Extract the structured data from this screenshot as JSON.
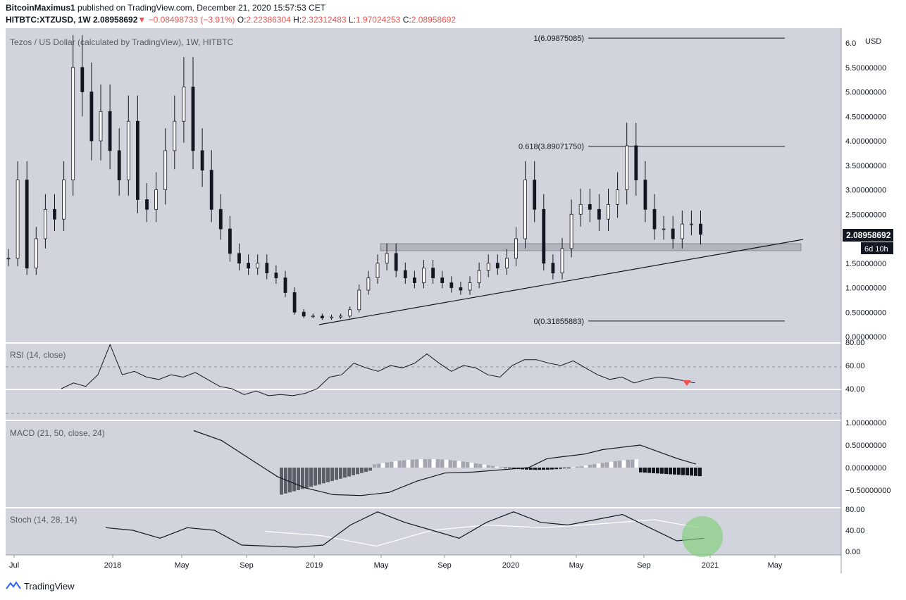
{
  "header": {
    "author": "BitcoinMaximus1",
    "published": "published on TradingView.com, December 21, 2020 15:57:53 CET",
    "symbol": "HITBTC:XTZUSD, 1W",
    "price": "2.08958692",
    "change": "−0.08498733 (−3.91%)",
    "o_label": "O:",
    "o": "2.22386304",
    "h_label": "H:",
    "h": "2.32312483",
    "l_label": "L:",
    "l": "1.97024253",
    "c_label": "C:",
    "c": "2.08958692"
  },
  "footer": {
    "brand": "TradingView"
  },
  "colors": {
    "panel": "#d1d4dc",
    "up": "#ffffff",
    "down": "#131722",
    "red": "#ef5350",
    "green": "#7fd07a"
  },
  "main_panel": {
    "title": "Tezos / US Dollar (calculated by TradingView), 1W, HITBTC",
    "currency": "USD",
    "last_price": "2.08958692",
    "countdown": "6d 10h",
    "fib_levels": [
      {
        "label": "1(6.09875085)",
        "value": 6.09875085
      },
      {
        "label": "0.618(3.89071750)",
        "value": 3.8907175
      },
      {
        "label": "0(0.31855883)",
        "value": 0.31855883
      }
    ]
  },
  "rsi_panel": {
    "title": "RSI (14, close)",
    "ticks": [
      "80.00",
      "60.00",
      "40.00"
    ]
  },
  "macd_panel": {
    "title": "MACD (21, 50, close, 24)",
    "ticks": [
      "1.00000000",
      "0.50000000",
      "0.00000000",
      "−0.50000000"
    ]
  },
  "stoch_panel": {
    "title": "Stoch (14, 28, 14)",
    "ticks": [
      "80.00",
      "40.00",
      "0.00"
    ]
  },
  "chart_data": {
    "type": "candlestick",
    "title": "Tezos / US Dollar (calculated by TradingView), 1W, HITBTC",
    "y_unit": "USD",
    "y_ticks": [
      "6.0",
      "5.50000000",
      "5.00000000",
      "4.50000000",
      "4.00000000",
      "3.50000000",
      "3.00000000",
      "2.50000000",
      "2.00000000",
      "1.50000000",
      "1.00000000",
      "0.50000000",
      "0.00000000"
    ],
    "x_ticks": [
      "Jul",
      "2018",
      "May",
      "Sep",
      "2019",
      "May",
      "Sep",
      "2020",
      "May",
      "Sep",
      "2021",
      "May"
    ],
    "price_path": [
      [
        0,
        1.6
      ],
      [
        2,
        3.2
      ],
      [
        4,
        1.4
      ],
      [
        6,
        2.0
      ],
      [
        8,
        2.6
      ],
      [
        10,
        2.4
      ],
      [
        12,
        3.2
      ],
      [
        14,
        5.5
      ],
      [
        16,
        5.0
      ],
      [
        18,
        4.0
      ],
      [
        20,
        4.6
      ],
      [
        22,
        3.8
      ],
      [
        24,
        3.2
      ],
      [
        26,
        4.4
      ],
      [
        28,
        2.8
      ],
      [
        30,
        2.6
      ],
      [
        32,
        3.0
      ],
      [
        34,
        3.8
      ],
      [
        36,
        4.4
      ],
      [
        38,
        5.1
      ],
      [
        40,
        3.8
      ],
      [
        42,
        3.4
      ],
      [
        44,
        2.6
      ],
      [
        46,
        2.2
      ],
      [
        48,
        1.7
      ],
      [
        50,
        1.5
      ],
      [
        52,
        1.4
      ],
      [
        54,
        1.5
      ],
      [
        56,
        1.3
      ],
      [
        58,
        1.2
      ],
      [
        60,
        0.9
      ],
      [
        62,
        0.5
      ],
      [
        64,
        0.42
      ],
      [
        66,
        0.42
      ],
      [
        68,
        0.38
      ],
      [
        70,
        0.4
      ],
      [
        72,
        0.42
      ],
      [
        74,
        0.55
      ],
      [
        76,
        0.95
      ],
      [
        78,
        1.2
      ],
      [
        80,
        1.5
      ],
      [
        82,
        1.7
      ],
      [
        84,
        1.35
      ],
      [
        86,
        1.2
      ],
      [
        88,
        1.1
      ],
      [
        90,
        1.4
      ],
      [
        92,
        1.2
      ],
      [
        94,
        1.1
      ],
      [
        96,
        1.0
      ],
      [
        98,
        0.95
      ],
      [
        100,
        1.1
      ],
      [
        102,
        1.35
      ],
      [
        104,
        1.5
      ],
      [
        106,
        1.4
      ],
      [
        108,
        1.6
      ],
      [
        110,
        2.0
      ],
      [
        112,
        3.2
      ],
      [
        114,
        2.6
      ],
      [
        116,
        1.5
      ],
      [
        118,
        1.3
      ],
      [
        120,
        1.8
      ],
      [
        122,
        2.5
      ],
      [
        124,
        2.7
      ],
      [
        126,
        2.6
      ],
      [
        128,
        2.4
      ],
      [
        130,
        2.7
      ],
      [
        132,
        3.0
      ],
      [
        134,
        3.9
      ],
      [
        136,
        3.2
      ],
      [
        138,
        2.6
      ],
      [
        140,
        2.2
      ],
      [
        142,
        2.2
      ],
      [
        144,
        2.0
      ],
      [
        146,
        2.3
      ],
      [
        148,
        2.3
      ],
      [
        150,
        2.09
      ]
    ],
    "rsi_path": [
      [
        0,
        40
      ],
      [
        2,
        45
      ],
      [
        4,
        42
      ],
      [
        6,
        52
      ],
      [
        8,
        78
      ],
      [
        10,
        52
      ],
      [
        12,
        55
      ],
      [
        14,
        50
      ],
      [
        16,
        48
      ],
      [
        18,
        52
      ],
      [
        20,
        50
      ],
      [
        22,
        54
      ],
      [
        24,
        48
      ],
      [
        26,
        42
      ],
      [
        28,
        40
      ],
      [
        30,
        35
      ],
      [
        32,
        38
      ],
      [
        34,
        34
      ],
      [
        36,
        35
      ],
      [
        38,
        34
      ],
      [
        40,
        36
      ],
      [
        42,
        40
      ],
      [
        44,
        50
      ],
      [
        46,
        52
      ],
      [
        48,
        62
      ],
      [
        50,
        58
      ],
      [
        52,
        55
      ],
      [
        54,
        60
      ],
      [
        56,
        58
      ],
      [
        58,
        62
      ],
      [
        60,
        70
      ],
      [
        62,
        62
      ],
      [
        64,
        55
      ],
      [
        66,
        60
      ],
      [
        68,
        58
      ],
      [
        70,
        52
      ],
      [
        72,
        50
      ],
      [
        74,
        60
      ],
      [
        76,
        65
      ],
      [
        78,
        65
      ],
      [
        80,
        62
      ],
      [
        82,
        60
      ],
      [
        84,
        64
      ],
      [
        86,
        58
      ],
      [
        88,
        52
      ],
      [
        90,
        48
      ],
      [
        92,
        50
      ],
      [
        94,
        45
      ],
      [
        96,
        48
      ],
      [
        98,
        50
      ],
      [
        100,
        49
      ],
      [
        102,
        47
      ],
      [
        104,
        45
      ]
    ],
    "rsi_bands": [
      70,
      50,
      30
    ],
    "macd_line": [
      [
        0,
        0.82
      ],
      [
        6,
        0.6
      ],
      [
        12,
        0.2
      ],
      [
        18,
        -0.2
      ],
      [
        24,
        -0.45
      ],
      [
        30,
        -0.6
      ],
      [
        36,
        -0.62
      ],
      [
        42,
        -0.55
      ],
      [
        48,
        -0.3
      ],
      [
        54,
        -0.12
      ],
      [
        60,
        -0.1
      ],
      [
        66,
        -0.05
      ],
      [
        72,
        0.0
      ],
      [
        76,
        0.2
      ],
      [
        80,
        0.25
      ],
      [
        84,
        0.3
      ],
      [
        88,
        0.4
      ],
      [
        92,
        0.45
      ],
      [
        96,
        0.5
      ],
      [
        100,
        0.35
      ],
      [
        104,
        0.2
      ],
      [
        108,
        0.08
      ]
    ],
    "stoch_k": [
      [
        0,
        45
      ],
      [
        4,
        40
      ],
      [
        8,
        25
      ],
      [
        12,
        45
      ],
      [
        16,
        40
      ],
      [
        20,
        12
      ],
      [
        24,
        10
      ],
      [
        28,
        8
      ],
      [
        32,
        12
      ],
      [
        36,
        50
      ],
      [
        40,
        75
      ],
      [
        44,
        55
      ],
      [
        48,
        40
      ],
      [
        52,
        25
      ],
      [
        56,
        55
      ],
      [
        60,
        75
      ],
      [
        64,
        55
      ],
      [
        68,
        50
      ],
      [
        72,
        60
      ],
      [
        76,
        70
      ],
      [
        80,
        45
      ],
      [
        84,
        20
      ],
      [
        88,
        25
      ]
    ],
    "stoch_d": [
      [
        10,
        38
      ],
      [
        20,
        30
      ],
      [
        30,
        10
      ],
      [
        40,
        40
      ],
      [
        50,
        50
      ],
      [
        60,
        45
      ],
      [
        70,
        52
      ],
      [
        80,
        60
      ],
      [
        88,
        45
      ]
    ],
    "support_zone": [
      1.7,
      1.9
    ],
    "annotations": [
      "rsi-red-triangle",
      "stoch-green-circle"
    ]
  }
}
